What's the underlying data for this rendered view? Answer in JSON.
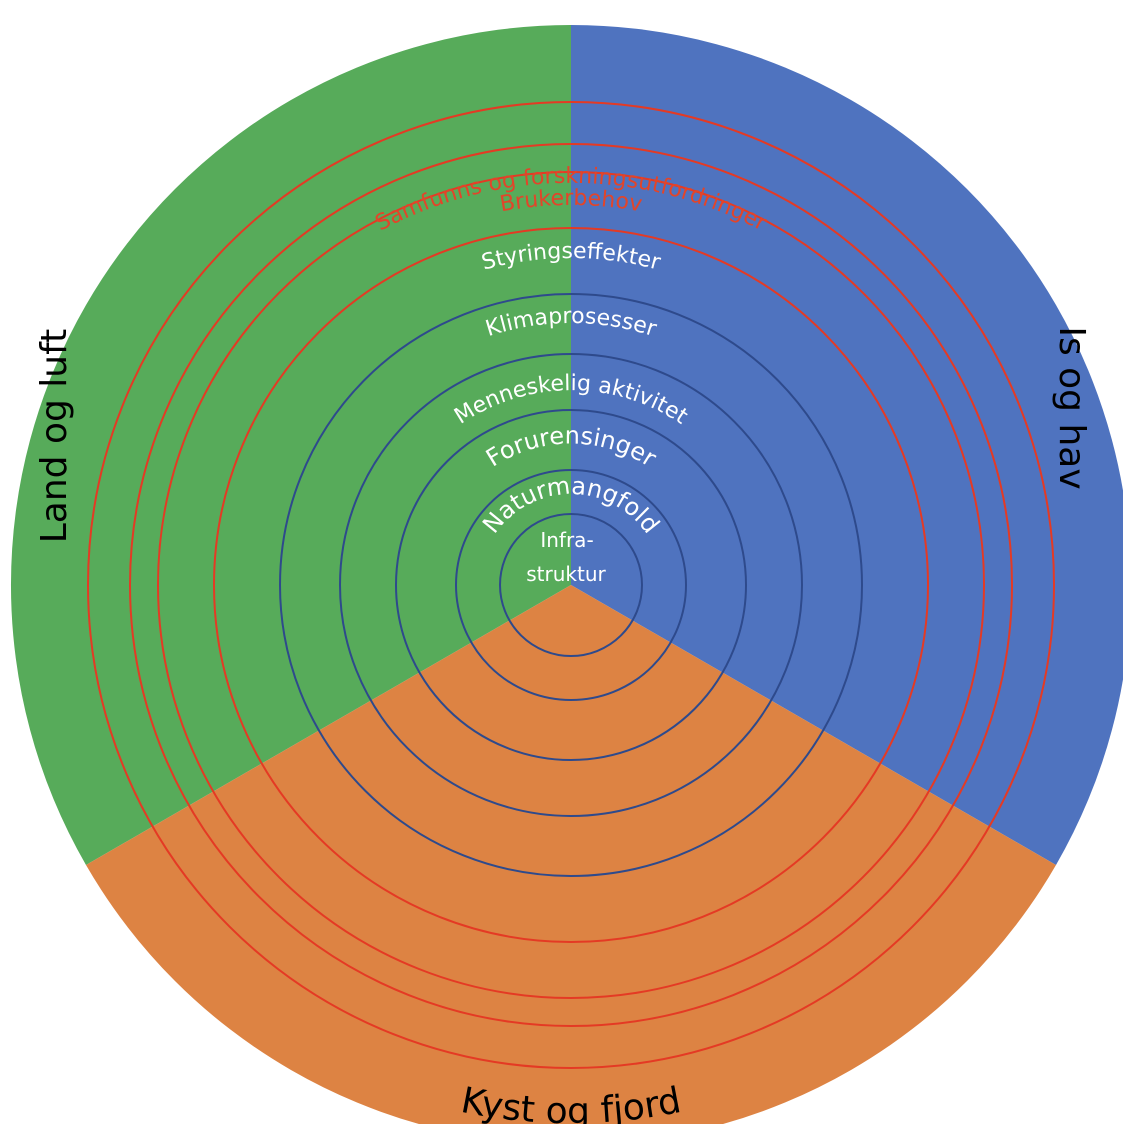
{
  "sectors": [
    {
      "label": "Land og luft",
      "color": "#57AB5A"
    },
    {
      "label": "Is og hav",
      "color": "#4F73BF"
    },
    {
      "label": "Kyst og fjord",
      "color": "#DD8343"
    }
  ],
  "rings": [
    {
      "label": "Samfunns og forskningsutfordringer",
      "text_color": "#E2452A",
      "line_color": "#E43A24"
    },
    {
      "label": "Brukerbehov",
      "text_color": "#E2452A",
      "line_color": "#E43A24"
    },
    {
      "label": "Styringseffekter",
      "text_color": "#FFFFFF",
      "line_color": "#E43A24"
    },
    {
      "label": "Klimaprosesser",
      "text_color": "#FFFFFF",
      "line_color": "#2E4A8C"
    },
    {
      "label": "Menneskelig aktivitet",
      "text_color": "#FFFFFF",
      "line_color": "#2E4A8C"
    },
    {
      "label": "Forurensinger",
      "text_color": "#FFFFFF",
      "line_color": "#2E4A8C"
    },
    {
      "label": "Naturmangfold",
      "text_color": "#FFFFFF",
      "line_color": "#2E4A8C"
    }
  ],
  "center": {
    "line1": "Infra-",
    "line2": "struktur",
    "text_color": "#FFFFFF",
    "line_color": "#2E4A8C"
  }
}
